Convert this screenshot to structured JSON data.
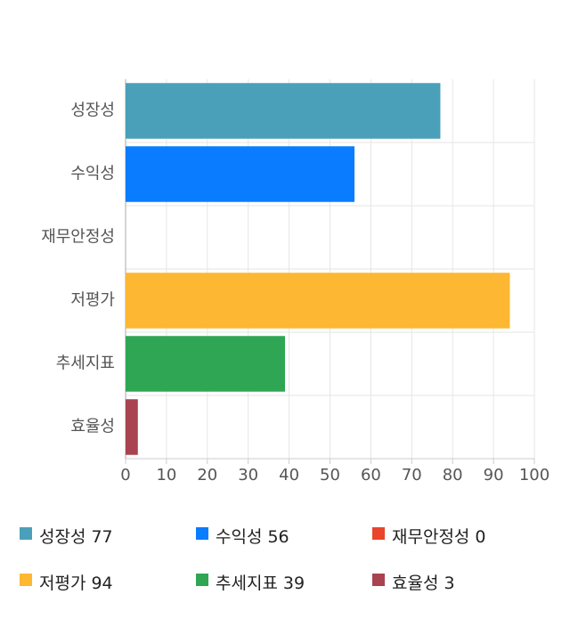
{
  "chart_data": {
    "type": "bar",
    "orientation": "horizontal",
    "categories": [
      "성장성",
      "수익성",
      "재무안정성",
      "저평가",
      "추세지표",
      "효율성"
    ],
    "values": [
      77,
      56,
      0,
      94,
      39,
      3
    ],
    "colors": [
      "#4aa0b9",
      "#0a7cff",
      "#e8452c",
      "#fdb732",
      "#2ea654",
      "#a8434f"
    ],
    "xlim": [
      0,
      100
    ],
    "xticks": [
      0,
      10,
      20,
      30,
      40,
      50,
      60,
      70,
      80,
      90,
      100
    ],
    "grid": true
  }
}
